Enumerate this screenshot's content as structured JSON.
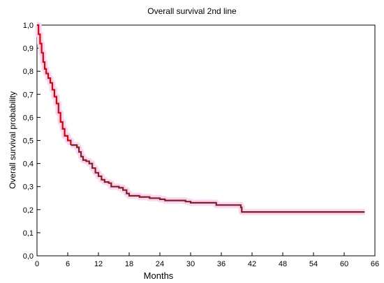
{
  "chart_data": {
    "type": "line",
    "title": "Overall survival 2nd line",
    "xlabel": "Months",
    "ylabel": "Overall survival probability",
    "xlim": [
      0,
      66
    ],
    "ylim": [
      0,
      1.0
    ],
    "x_ticks": [
      "0",
      "6",
      "12",
      "18",
      "24",
      "30",
      "36",
      "42",
      "48",
      "54",
      "60",
      "66"
    ],
    "y_ticks": [
      "0,0",
      "0,1",
      "0,2",
      "0,3",
      "0,4",
      "0,5",
      "0,6",
      "0,7",
      "0,8",
      "0,9",
      "1,0"
    ],
    "grid": false,
    "series": [
      {
        "color": "#e00000",
        "segments": [
          {
            "color": "#e00000",
            "points": [
              [
                0,
                1.0
              ],
              [
                0.3,
                0.96
              ],
              [
                0.6,
                0.92
              ],
              [
                0.9,
                0.88
              ],
              [
                1.2,
                0.84
              ],
              [
                1.5,
                0.81
              ],
              [
                1.8,
                0.79
              ],
              [
                2.2,
                0.77
              ],
              [
                2.6,
                0.75
              ],
              [
                3.0,
                0.72
              ],
              [
                3.4,
                0.69
              ],
              [
                3.8,
                0.66
              ],
              [
                4.2,
                0.62
              ],
              [
                4.6,
                0.58
              ],
              [
                5.0,
                0.55
              ],
              [
                5.4,
                0.52
              ],
              [
                6.0,
                0.5
              ],
              [
                6.6,
                0.48
              ]
            ]
          },
          {
            "color": "#8b1c1c",
            "points": [
              [
                6.6,
                0.48
              ],
              [
                7.8,
                0.47
              ],
              [
                8.2,
                0.45
              ],
              [
                8.6,
                0.43
              ],
              [
                9.0,
                0.415
              ],
              [
                9.6,
                0.41
              ],
              [
                10.2,
                0.4
              ],
              [
                10.8,
                0.38
              ],
              [
                11.4,
                0.36
              ],
              [
                12.0,
                0.345
              ],
              [
                12.6,
                0.33
              ],
              [
                13.2,
                0.32
              ],
              [
                14.0,
                0.315
              ],
              [
                14.5,
                0.3
              ],
              [
                16.0,
                0.295
              ],
              [
                16.8,
                0.285
              ],
              [
                17.5,
                0.27
              ],
              [
                18.0,
                0.26
              ],
              [
                20.0,
                0.255
              ],
              [
                22.0,
                0.25
              ],
              [
                24.0,
                0.245
              ],
              [
                25.0,
                0.24
              ],
              [
                29.0,
                0.235
              ],
              [
                30.0,
                0.23
              ],
              [
                35.0,
                0.22
              ],
              [
                39.5,
                0.22
              ],
              [
                39.8,
                0.21
              ],
              [
                40.0,
                0.19
              ],
              [
                64.0,
                0.19
              ]
            ]
          }
        ]
      }
    ]
  }
}
